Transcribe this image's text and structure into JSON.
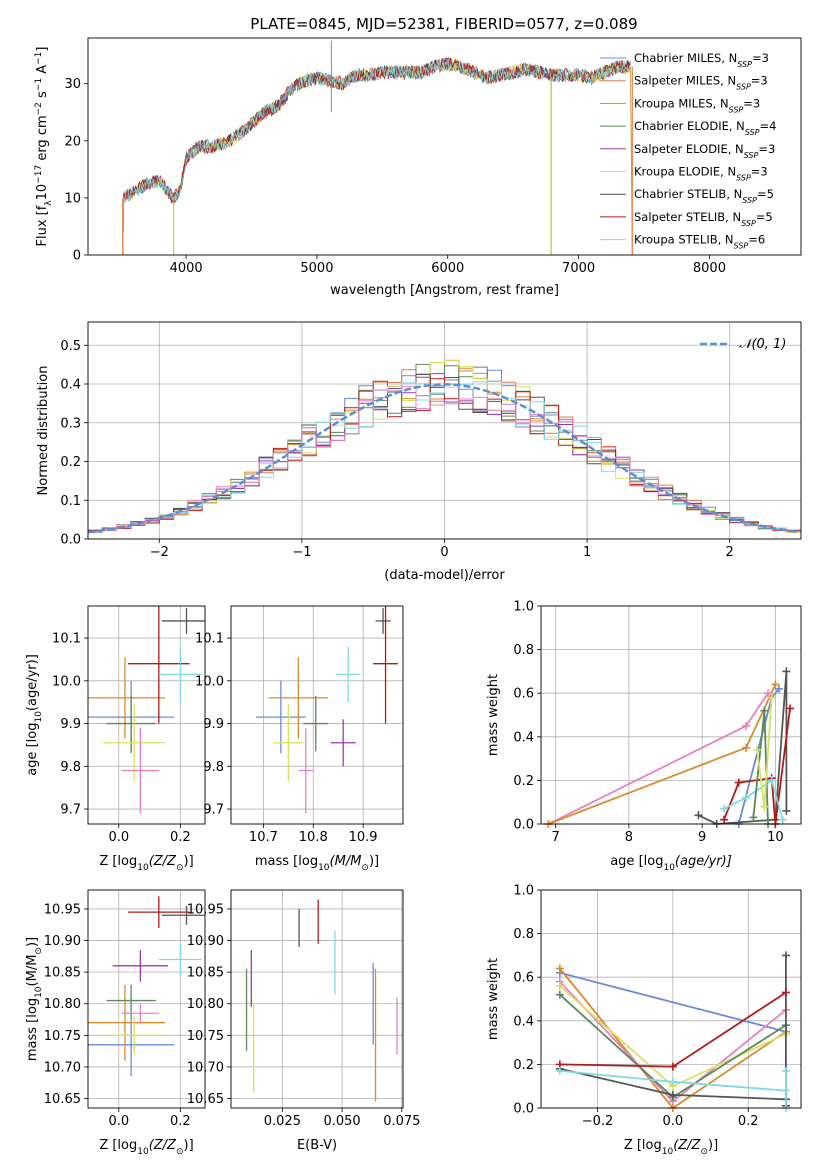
{
  "figure": {
    "title": "PLATE=0845, MJD=52381, FIBERID=0577, z=0.089"
  },
  "chart_data": [
    {
      "id": "spectrum",
      "type": "line",
      "xlabel": "wavelength [Angstrom, rest frame]",
      "ylabel_parts": [
        "Flux [f",
        "λ",
        "10",
        "−17",
        " erg cm",
        "−2",
        " s",
        "−1",
        " A",
        "−1",
        "]"
      ],
      "xlim": [
        3250,
        8700
      ],
      "ylim": [
        0,
        38
      ],
      "xticks": [
        4000,
        5000,
        6000,
        7000,
        8000
      ],
      "yticks": [
        0,
        10,
        20,
        30
      ],
      "grid": false,
      "legend_position": "right",
      "spectrum_anchor_points": [
        [
          3500,
          10
        ],
        [
          3600,
          11
        ],
        [
          3700,
          12.5
        ],
        [
          3800,
          13
        ],
        [
          3900,
          10
        ],
        [
          3950,
          11
        ],
        [
          4000,
          17
        ],
        [
          4100,
          19
        ],
        [
          4200,
          19
        ],
        [
          4300,
          19.5
        ],
        [
          4400,
          21
        ],
        [
          4500,
          23
        ],
        [
          4600,
          25
        ],
        [
          4700,
          26
        ],
        [
          4800,
          29
        ],
        [
          4900,
          30.5
        ],
        [
          5000,
          31
        ],
        [
          5100,
          30.5
        ],
        [
          5200,
          30
        ],
        [
          5300,
          31.5
        ],
        [
          5400,
          31.5
        ],
        [
          5500,
          32
        ],
        [
          5600,
          32
        ],
        [
          5700,
          32
        ],
        [
          5800,
          32
        ],
        [
          5900,
          33
        ],
        [
          6000,
          33.5
        ],
        [
          6100,
          33
        ],
        [
          6200,
          32
        ],
        [
          6300,
          31
        ],
        [
          6400,
          31.5
        ],
        [
          6500,
          32
        ],
        [
          6600,
          32.5
        ],
        [
          6700,
          32
        ],
        [
          6800,
          31.5
        ],
        [
          6900,
          31.5
        ],
        [
          7000,
          31.5
        ],
        [
          7100,
          31
        ],
        [
          7200,
          32
        ],
        [
          7300,
          33
        ],
        [
          7400,
          33
        ]
      ],
      "series": [
        {
          "name": "Chabrier MILES, N",
          "sub": "SSP",
          "suffix": "=3",
          "color": "#6a8ad8"
        },
        {
          "name": "Salpeter MILES, N",
          "sub": "SSP",
          "suffix": "=3",
          "color": "#e07a5a"
        },
        {
          "name": "Kroupa MILES, N",
          "sub": "SSP",
          "suffix": "=3",
          "color": "#d98a2b"
        },
        {
          "name": "Chabrier ELODIE, N",
          "sub": "SSP",
          "suffix": "=4",
          "color": "#5a8a5a"
        },
        {
          "name": "Salpeter ELODIE, N",
          "sub": "SSP",
          "suffix": "=3",
          "color": "#9a3aa8"
        },
        {
          "name": "Kroupa ELODIE, N",
          "sub": "SSP",
          "suffix": "=3",
          "color": "#d8e060"
        },
        {
          "name": "Chabrier STELIB, N",
          "sub": "SSP",
          "suffix": "=5",
          "color": "#555555"
        },
        {
          "name": "Salpeter STELIB, N",
          "sub": "SSP",
          "suffix": "=5",
          "color": "#b01a1a"
        },
        {
          "name": "Kroupa STELIB, N",
          "sub": "SSP",
          "suffix": "=6",
          "color": "#80d8e0"
        }
      ]
    },
    {
      "id": "residuals",
      "type": "line",
      "xlabel": "(data-model)/error",
      "ylabel": "Normed distribution",
      "xlim": [
        -2.5,
        2.5
      ],
      "ylim": [
        0,
        0.56
      ],
      "xticks": [
        -2,
        -1,
        0,
        1,
        2
      ],
      "yticks": [
        0.0,
        0.1,
        0.2,
        0.3,
        0.4,
        0.5
      ],
      "grid": true,
      "legend_position": "top-right",
      "legend": "𝒩(0, 1)",
      "bin_width": 0.1,
      "reference_curve": {
        "name": "𝒩(0, 1)",
        "mean": 0,
        "sigma": 1,
        "color": "#5b8ed8"
      },
      "hist_colors": [
        "#6a8ad8",
        "#e07a5a",
        "#d98a2b",
        "#5a8a5a",
        "#9a3aa8",
        "#d8e060",
        "#555555",
        "#b01a1a",
        "#80d8e0",
        "#e880c0"
      ]
    },
    {
      "id": "age_vs_Z",
      "type": "scatter",
      "xlabel_parts": [
        "Z [log",
        "10",
        "(Z/Z",
        "⊙",
        ")]"
      ],
      "ylabel_parts": [
        "age  [log",
        "10",
        "(age/yr)]"
      ],
      "xlim": [
        -0.1,
        0.28
      ],
      "ylim": [
        9.665,
        10.175
      ],
      "xticks": [
        0.0,
        0.2
      ],
      "yticks": [
        9.7,
        9.8,
        9.9,
        10.0,
        10.1
      ],
      "grid": true,
      "points": [
        {
          "x": 0.04,
          "xerr": 0.14,
          "y": 9.915,
          "yerr": 0.085,
          "color": "#6a8ad8"
        },
        {
          "x": 0.02,
          "xerr": 0.13,
          "y": 9.96,
          "yerr": 0.095,
          "color": "#d98a2b"
        },
        {
          "x": 0.04,
          "xerr": 0.08,
          "y": 9.9,
          "yerr": 0.065,
          "color": "#5a8a5a"
        },
        {
          "x": 0.05,
          "xerr": 0.1,
          "y": 9.855,
          "yerr": 0.09,
          "color": "#d8e060"
        },
        {
          "x": 0.07,
          "xerr": 0.06,
          "y": 9.79,
          "yerr": 0.1,
          "color": "#e880c0"
        },
        {
          "x": 0.22,
          "xerr": 0.08,
          "y": 10.14,
          "yerr": 0.03,
          "color": "#555555"
        },
        {
          "x": 0.13,
          "xerr": 0.1,
          "y": 10.04,
          "yerr": 0.14,
          "color": "#b01a1a"
        },
        {
          "x": 0.2,
          "xerr": 0.07,
          "y": 10.015,
          "yerr": 0.065,
          "color": "#80d8e0"
        }
      ]
    },
    {
      "id": "age_vs_mass",
      "type": "scatter",
      "xlabel_parts": [
        "mass [log",
        "10",
        "(M/M",
        "⊙",
        ")]"
      ],
      "xlim": [
        10.635,
        10.98
      ],
      "ylim": [
        9.665,
        10.175
      ],
      "xticks": [
        10.7,
        10.8,
        10.9
      ],
      "yticks": [
        9.7,
        9.8,
        9.9,
        10.0,
        10.1
      ],
      "grid": true,
      "points": [
        {
          "x": 10.735,
          "xerr": 0.05,
          "y": 9.915,
          "yerr": 0.085,
          "color": "#6a8ad8"
        },
        {
          "x": 10.77,
          "xerr": 0.06,
          "y": 9.96,
          "yerr": 0.095,
          "color": "#d98a2b"
        },
        {
          "x": 10.805,
          "xerr": 0.025,
          "y": 9.9,
          "yerr": 0.065,
          "color": "#5a8a5a"
        },
        {
          "x": 10.75,
          "xerr": 0.03,
          "y": 9.855,
          "yerr": 0.09,
          "color": "#d8e060"
        },
        {
          "x": 10.785,
          "xerr": 0.015,
          "y": 9.79,
          "yerr": 0.1,
          "color": "#e880c0"
        },
        {
          "x": 10.94,
          "xerr": 0.015,
          "y": 10.14,
          "yerr": 0.03,
          "color": "#555555"
        },
        {
          "x": 10.945,
          "xerr": 0.025,
          "y": 10.04,
          "yerr": 0.14,
          "color": "#b01a1a"
        },
        {
          "x": 10.87,
          "xerr": 0.025,
          "y": 10.015,
          "yerr": 0.065,
          "color": "#80d8e0"
        },
        {
          "x": 10.86,
          "xerr": 0.025,
          "y": 9.855,
          "yerr": 0.055,
          "color": "#9a3aa8"
        }
      ]
    },
    {
      "id": "mass_weight_vs_age",
      "type": "line",
      "xlabel_parts": [
        "age  [log",
        "10",
        "(age/yr)]"
      ],
      "ylabel": "mass weight",
      "xlim": [
        6.8,
        10.35
      ],
      "ylim": [
        0,
        1
      ],
      "xticks": [
        7,
        8,
        9,
        10
      ],
      "yticks": [
        0.0,
        0.2,
        0.4,
        0.6,
        0.8,
        1.0
      ],
      "grid": true,
      "series": [
        {
          "color": "#e880c0",
          "points": [
            [
              6.9,
              0.0
            ],
            [
              9.6,
              0.45
            ],
            [
              9.9,
              0.6
            ]
          ]
        },
        {
          "color": "#d98a2b",
          "points": [
            [
              6.9,
              0.0
            ],
            [
              9.6,
              0.35
            ],
            [
              10.0,
              0.64
            ]
          ]
        },
        {
          "color": "#6a8ad8",
          "points": [
            [
              9.5,
              0.0
            ],
            [
              9.95,
              0.58
            ],
            [
              10.05,
              0.62
            ]
          ]
        },
        {
          "color": "#555555",
          "points": [
            [
              8.95,
              0.04
            ],
            [
              9.2,
              0.0
            ],
            [
              10.0,
              0.02
            ],
            [
              10.15,
              0.7
            ],
            [
              10.15,
              0.06
            ]
          ]
        },
        {
          "color": "#b01a1a",
          "points": [
            [
              9.3,
              0.02
            ],
            [
              9.5,
              0.19
            ],
            [
              9.95,
              0.21
            ],
            [
              10.0,
              0.0
            ],
            [
              10.2,
              0.53
            ]
          ]
        },
        {
          "color": "#80d8e0",
          "points": [
            [
              9.3,
              0.07
            ],
            [
              9.6,
              0.12
            ],
            [
              9.95,
              0.2
            ],
            [
              10.1,
              0.02
            ]
          ]
        },
        {
          "color": "#5a8a5a",
          "points": [
            [
              9.7,
              0.03
            ],
            [
              9.85,
              0.52
            ],
            [
              9.9,
              0.0
            ]
          ]
        },
        {
          "color": "#d8e060",
          "points": [
            [
              9.75,
              0.34
            ],
            [
              9.85,
              0.08
            ],
            [
              9.95,
              0.58
            ]
          ]
        }
      ]
    },
    {
      "id": "mass_vs_Z",
      "type": "scatter",
      "xlabel_parts": [
        "Z [log",
        "10",
        "(Z/Z",
        "⊙",
        ")]"
      ],
      "ylabel_parts": [
        "mass [log",
        "10",
        "(M/M",
        "⊙",
        ")]"
      ],
      "xlim": [
        -0.1,
        0.28
      ],
      "ylim": [
        10.635,
        10.98
      ],
      "xticks": [
        0.0,
        0.2
      ],
      "yticks": [
        10.65,
        10.7,
        10.75,
        10.8,
        10.85,
        10.9,
        10.95
      ],
      "grid": true,
      "points": [
        {
          "x": 0.04,
          "xerr": 0.14,
          "y": 10.735,
          "yerr": 0.05,
          "color": "#6a8ad8"
        },
        {
          "x": 0.02,
          "xerr": 0.13,
          "y": 10.77,
          "yerr": 0.06,
          "color": "#d98a2b"
        },
        {
          "x": 0.04,
          "xerr": 0.08,
          "y": 10.805,
          "yerr": 0.025,
          "color": "#5a8a5a"
        },
        {
          "x": 0.05,
          "xerr": 0.1,
          "y": 10.75,
          "yerr": 0.03,
          "color": "#d8e060"
        },
        {
          "x": 0.07,
          "xerr": 0.06,
          "y": 10.785,
          "yerr": 0.015,
          "color": "#e880c0"
        },
        {
          "x": 0.22,
          "xerr": 0.08,
          "y": 10.94,
          "yerr": 0.015,
          "color": "#555555"
        },
        {
          "x": 0.13,
          "xerr": 0.1,
          "y": 10.945,
          "yerr": 0.025,
          "color": "#b01a1a"
        },
        {
          "x": 0.2,
          "xerr": 0.07,
          "y": 10.87,
          "yerr": 0.025,
          "color": "#80d8e0"
        },
        {
          "x": 0.07,
          "xerr": 0.09,
          "y": 10.86,
          "yerr": 0.025,
          "color": "#9a3aa8"
        }
      ]
    },
    {
      "id": "mass_vs_ebv",
      "type": "scatter",
      "xlabel": "E(B-V)",
      "xlim": [
        0.0035,
        0.0755
      ],
      "ylim": [
        10.635,
        10.98
      ],
      "xticks": [
        0.025,
        0.05,
        0.075
      ],
      "yticks": [
        10.65,
        10.7,
        10.75,
        10.8,
        10.85,
        10.9,
        10.95
      ],
      "grid": true,
      "points": [
        {
          "x": 0.01,
          "y": 10.79,
          "yerr": 0.065,
          "color": "#5a8a5a"
        },
        {
          "x": 0.012,
          "y": 10.84,
          "yerr": 0.045,
          "color": "#9a3aa8"
        },
        {
          "x": 0.013,
          "y": 10.73,
          "yerr": 0.07,
          "color": "#d8e060"
        },
        {
          "x": 0.032,
          "y": 10.92,
          "yerr": 0.03,
          "color": "#555555"
        },
        {
          "x": 0.04,
          "y": 10.93,
          "yerr": 0.035,
          "color": "#b01a1a"
        },
        {
          "x": 0.047,
          "y": 10.865,
          "yerr": 0.05,
          "color": "#80d8e0"
        },
        {
          "x": 0.063,
          "y": 10.8,
          "yerr": 0.065,
          "color": "#6a8ad8"
        },
        {
          "x": 0.064,
          "y": 10.75,
          "yerr": 0.105,
          "color": "#d98a2b"
        },
        {
          "x": 0.073,
          "y": 10.765,
          "yerr": 0.045,
          "color": "#e880c0"
        }
      ]
    },
    {
      "id": "mass_weight_vs_Z",
      "type": "line",
      "xlabel_parts": [
        "Z [log",
        "10",
        "(Z/Z",
        "⊙",
        ")]"
      ],
      "ylabel": "mass weight",
      "xlim": [
        -0.35,
        0.34
      ],
      "ylim": [
        0,
        1
      ],
      "xticks": [
        -0.2,
        0.0,
        0.2
      ],
      "yticks": [
        0.0,
        0.2,
        0.4,
        0.6,
        0.8,
        1.0
      ],
      "grid": true,
      "series": [
        {
          "color": "#6a8ad8",
          "points": [
            [
              -0.3,
              0.62
            ],
            [
              0.3,
              0.35
            ]
          ]
        },
        {
          "color": "#d98a2b",
          "points": [
            [
              -0.3,
              0.64
            ],
            [
              0.0,
              0.0
            ],
            [
              0.3,
              0.35
            ]
          ]
        },
        {
          "color": "#e880c0",
          "points": [
            [
              -0.3,
              0.58
            ],
            [
              0.0,
              0.03
            ],
            [
              0.3,
              0.45
            ]
          ]
        },
        {
          "color": "#d8e060",
          "points": [
            [
              -0.3,
              0.56
            ],
            [
              0.0,
              0.1
            ],
            [
              0.3,
              0.34
            ]
          ]
        },
        {
          "color": "#5a8a5a",
          "points": [
            [
              -0.3,
              0.52
            ],
            [
              0.0,
              0.05
            ],
            [
              0.3,
              0.38
            ]
          ]
        },
        {
          "color": "#555555",
          "points": [
            [
              -0.3,
              0.18
            ],
            [
              0.0,
              0.06
            ],
            [
              0.3,
              0.04
            ],
            [
              0.3,
              0.7
            ],
            [
              0.3,
              0.01
            ]
          ]
        },
        {
          "color": "#b01a1a",
          "points": [
            [
              -0.3,
              0.2
            ],
            [
              0.0,
              0.19
            ],
            [
              0.3,
              0.53
            ]
          ]
        },
        {
          "color": "#80d8e0",
          "points": [
            [
              -0.3,
              0.17
            ],
            [
              0.0,
              0.12
            ],
            [
              0.3,
              0.08
            ],
            [
              0.3,
              0.0
            ],
            [
              0.3,
              0.17
            ]
          ]
        }
      ]
    }
  ]
}
